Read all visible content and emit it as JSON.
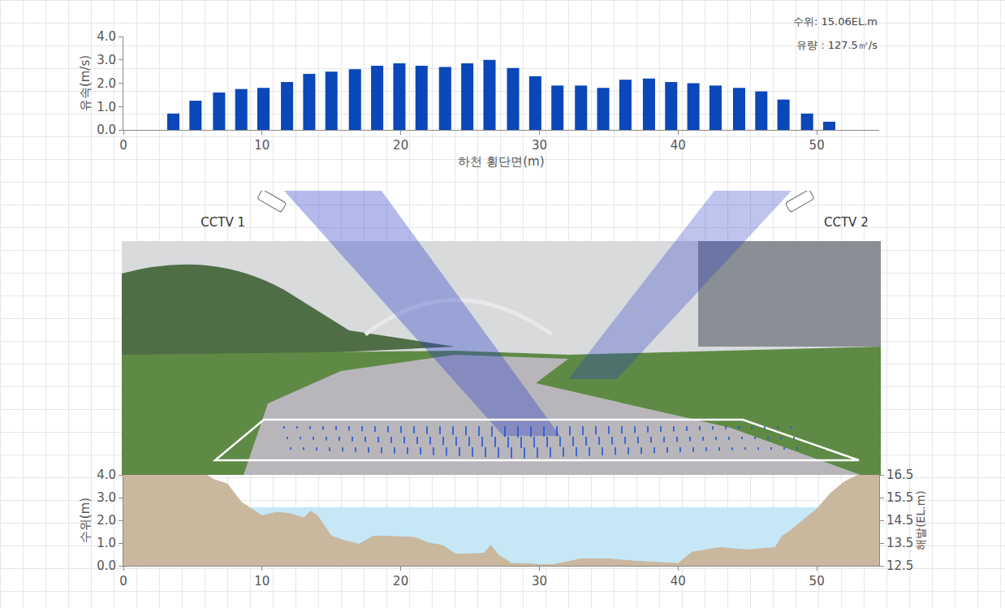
{
  "chart_data": [
    {
      "type": "bar",
      "x_label": "하천 횡단면(m)",
      "y_label": "유속(m/s)",
      "annotations": [
        "수위: 15.06EL.m",
        "유량 : 127.5㎥/s"
      ],
      "x": [
        3.6,
        5.2,
        6.9,
        8.5,
        10.1,
        11.8,
        13.4,
        15.0,
        16.7,
        18.3,
        19.9,
        21.5,
        23.2,
        24.8,
        26.4,
        28.1,
        29.7,
        31.3,
        33.0,
        34.6,
        36.2,
        37.9,
        39.5,
        41.1,
        42.7,
        44.4,
        46.0,
        47.6,
        49.3,
        50.9
      ],
      "values": [
        0.7,
        1.25,
        1.6,
        1.75,
        1.8,
        2.05,
        2.4,
        2.5,
        2.6,
        2.75,
        2.85,
        2.75,
        2.7,
        2.85,
        3.0,
        2.65,
        2.3,
        1.9,
        1.9,
        1.8,
        2.15,
        2.2,
        2.05,
        2.0,
        1.9,
        1.8,
        1.65,
        1.3,
        0.7,
        0.35
      ],
      "color": "#0a47b8",
      "xlim": [
        0,
        54.5
      ],
      "xticks": [
        0,
        10,
        20,
        30,
        40,
        50
      ],
      "ylim": [
        0,
        4
      ],
      "yticks": [
        {
          "value": 0,
          "label": "0.0"
        },
        {
          "value": 1,
          "label": "1.0"
        },
        {
          "value": 2,
          "label": "2.0"
        },
        {
          "value": 3,
          "label": "3.0"
        },
        {
          "value": 4,
          "label": "4.0"
        }
      ],
      "grid": false
    },
    {
      "type": "area",
      "y_label": "수위(m)",
      "y2_label": "해발(EL.m)",
      "series": [
        {
          "type": "area",
          "color": "#c6e7f6",
          "axis": "y",
          "x": [
            8.5,
            50.2
          ],
          "values": [
            2.56,
            2.56
          ]
        },
        {
          "type": "area",
          "color": "#c9b79e",
          "axis": "y2",
          "x": [
            0,
            6,
            6.5,
            7.5,
            8.5,
            10,
            11,
            12,
            13,
            13.5,
            14,
            15,
            16,
            17,
            18,
            19,
            21,
            22,
            23,
            24,
            26,
            26.5,
            27,
            28,
            29,
            30,
            31,
            33,
            35,
            37,
            40,
            41,
            43,
            45,
            47,
            47.5,
            48,
            49,
            50,
            51,
            52,
            53,
            54.5
          ],
          "values": [
            16.5,
            16.5,
            16.3,
            16.1,
            15.3,
            14.7,
            14.85,
            14.8,
            14.6,
            14.9,
            14.7,
            13.8,
            13.6,
            13.45,
            13.8,
            13.8,
            13.75,
            13.5,
            13.4,
            13.0,
            13.05,
            13.4,
            13.0,
            12.6,
            12.6,
            12.55,
            12.55,
            12.8,
            12.8,
            12.7,
            12.6,
            13.1,
            13.3,
            13.2,
            13.3,
            13.8,
            14.0,
            14.5,
            15.0,
            15.7,
            16.2,
            16.5,
            16.5
          ]
        }
      ],
      "xlim": [
        0,
        54.5
      ],
      "xticks": [
        0,
        10,
        20,
        30,
        40,
        50
      ],
      "ylim": [
        0,
        4
      ],
      "yticks": [
        {
          "value": 0,
          "label": "0.0"
        },
        {
          "value": 1,
          "label": "1.0"
        },
        {
          "value": 2,
          "label": "2.0"
        },
        {
          "value": 3,
          "label": "3.0"
        },
        {
          "value": 4,
          "label": "4.0"
        }
      ],
      "y2lim": [
        12.5,
        16.5
      ],
      "y2ticks": [
        12.5,
        13.5,
        14.5,
        15.5,
        16.5
      ],
      "grid": false
    }
  ],
  "photo": {
    "labels": [
      "CCTV 1",
      "CCTV 2"
    ]
  }
}
